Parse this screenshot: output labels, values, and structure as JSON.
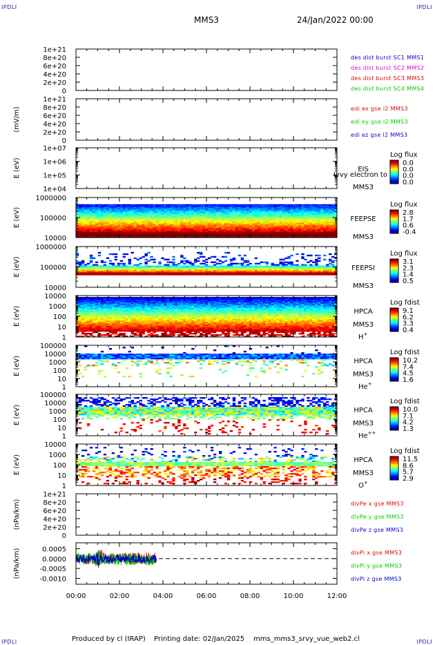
{
  "corners": {
    "tl": "IPDLI",
    "tr": "IPDLI",
    "bl": "IPDLI",
    "br": "IPDLI"
  },
  "header": {
    "spacecraft": "MMS3",
    "date": "24/Jan/2022 00:00"
  },
  "footer": {
    "produced": "Produced by cl (IRAP)",
    "printing": "Printing date: 02/Jan/2025",
    "file": "mms_mms3_srvy_vue_web2.cl"
  },
  "colors": {
    "black": "#000000",
    "blue": "#0000cc",
    "green": "#00cc00",
    "red": "#dd0000",
    "magenta": "#dd00dd"
  },
  "chart_data": {
    "type": "multi-panel time series (line + spectrogram)",
    "time_axis": {
      "range": [
        "00:00",
        "12:00"
      ],
      "ticks": [
        "00:00",
        "02:00",
        "04:00",
        "06:00",
        "08:00",
        "10:00",
        "12:00"
      ]
    },
    "panels": [
      {
        "id": "p1",
        "kind": "line",
        "ylabel": "",
        "yticks": [
          "1e+21",
          "8e+20",
          "6e+20",
          "4e+20",
          "2e+20",
          "0"
        ],
        "ylim": [
          0,
          1e+21
        ],
        "zero_line": true,
        "legend": [
          {
            "label": "des dist burst SC1 MMS1",
            "color": "#0000cc"
          },
          {
            "label": "des dist burst SC2 MMS2",
            "color": "#dd00dd"
          },
          {
            "label": "des dist burst SC3 MMS3",
            "color": "#dd0000"
          },
          {
            "label": "des dist burst SC4 MMS4",
            "color": "#00cc00"
          }
        ],
        "series": []
      },
      {
        "id": "p2",
        "kind": "line",
        "ylabel": "(mV/m)",
        "yticks": [
          "1e+21",
          "8e+20",
          "6e+20",
          "4e+20",
          "2e+20",
          "0"
        ],
        "ylim": [
          0,
          1e+21
        ],
        "zero_line": true,
        "legend": [
          {
            "label": "edi ex gse l2 MMS3",
            "color": "#dd0000"
          },
          {
            "label": "edi ey gse l2 MMS3",
            "color": "#00cc00"
          },
          {
            "label": "edi ez gse l2 MMS3",
            "color": "#0000cc"
          }
        ],
        "series": []
      },
      {
        "id": "p3",
        "kind": "spectrogram",
        "ylabel": "E (eV)",
        "yticks": [
          "1e+07",
          "1e+06",
          "1e+05",
          "1e+04"
        ],
        "label": [
          "EIS",
          "MMS3"
        ],
        "overlay": "Ivvy electron to",
        "colorbar": {
          "title": "Log flux",
          "ticks": [
            "0.0",
            "0.0",
            "0.0",
            "0.0"
          ]
        },
        "empty": true
      },
      {
        "id": "p4",
        "kind": "spectrogram",
        "ylabel": "E (eV)",
        "yticks": [
          "1000000",
          "100000",
          "10000"
        ],
        "label": [
          "FEEPSE",
          "MMS3"
        ],
        "colorbar": {
          "title": "Log flux",
          "ticks": [
            "2.8",
            "1.7",
            "0.6",
            "-0.4"
          ]
        },
        "pattern": "feepse"
      },
      {
        "id": "p5",
        "kind": "spectrogram",
        "ylabel": "E (eV)",
        "yticks": [
          "1000000",
          "100000",
          "10000"
        ],
        "label": [
          "FEEPSI",
          "MMS3"
        ],
        "colorbar": {
          "title": "Log flux",
          "ticks": [
            "3.1",
            "2.3",
            "1.4",
            "0.5"
          ]
        },
        "pattern": "feepsi"
      },
      {
        "id": "p6",
        "kind": "spectrogram",
        "ylabel": "E (eV)",
        "yticks": [
          "10000",
          "1000",
          "100",
          "10",
          "1"
        ],
        "label": [
          "HPCA",
          "MMS3"
        ],
        "species": "H",
        "charge": "+",
        "colorbar": {
          "title": "Log fdist",
          "ticks": [
            "9.1",
            "6.2",
            "3.3",
            "0.4"
          ]
        },
        "pattern": "hpca_h"
      },
      {
        "id": "p7",
        "kind": "spectrogram",
        "ylabel": "E (eV)",
        "yticks": [
          "100000",
          "10000",
          "1000",
          "100",
          "10",
          "1"
        ],
        "label": [
          "HPCA",
          "MMS3"
        ],
        "species": "He",
        "charge": "+",
        "colorbar": {
          "title": "Log fdist",
          "ticks": [
            "10.2",
            "7.4",
            "4.5",
            "1.6"
          ]
        },
        "pattern": "hpca_he1"
      },
      {
        "id": "p8",
        "kind": "spectrogram",
        "ylabel": "E (eV)",
        "yticks": [
          "100000",
          "10000",
          "1000",
          "100",
          "10",
          "1"
        ],
        "label": [
          "HPCA",
          "MMS3"
        ],
        "species": "He",
        "charge": "++",
        "colorbar": {
          "title": "Log fdist",
          "ticks": [
            "10.0",
            "7.1",
            "4.2",
            "1.3"
          ]
        },
        "pattern": "hpca_he2"
      },
      {
        "id": "p9",
        "kind": "spectrogram",
        "ylabel": "E (eV)",
        "yticks": [
          "10000",
          "1000",
          "100",
          "10",
          "1"
        ],
        "label": [
          "HPCA",
          "MMS3"
        ],
        "species": "O",
        "charge": "+",
        "colorbar": {
          "title": "Log fdist",
          "ticks": [
            "11.5",
            "8.6",
            "5.7",
            "2.9"
          ]
        },
        "pattern": "hpca_o"
      },
      {
        "id": "p10",
        "kind": "line",
        "ylabel": "(nPa/km)",
        "yticks": [
          "1e+21",
          "8e+20",
          "6e+20",
          "4e+20",
          "2e+20",
          "0"
        ],
        "ylim": [
          0,
          1e+21
        ],
        "zero_line": true,
        "legend": [
          {
            "label": "divPe x gse MMS3",
            "color": "#dd0000"
          },
          {
            "label": "divPe y gse MMS3",
            "color": "#00cc00"
          },
          {
            "label": "divPe z gse MMS3",
            "color": "#0000cc"
          }
        ],
        "series": []
      },
      {
        "id": "p11",
        "kind": "line",
        "ylabel": "(nPa/km)",
        "yticks": [
          "0.0005",
          "0.0000",
          "-0.0005",
          "-0.0010"
        ],
        "ylim": [
          -0.0013,
          0.0008
        ],
        "zero_line": true,
        "legend": [
          {
            "label": "divPi x gse MMS3",
            "color": "#dd0000"
          },
          {
            "label": "divPi y gse MMS3",
            "color": "#00cc00"
          },
          {
            "label": "divPi z gse MMS3",
            "color": "#0000cc"
          }
        ],
        "series": [
          {
            "name": "divPi x gse MMS3",
            "color": "#dd0000",
            "t_range": [
              0,
              3.7
            ],
            "mean": 0.0,
            "amplitude": 0.0003
          },
          {
            "name": "divPi y gse MMS3",
            "color": "#00cc00",
            "t_range": [
              0,
              3.7
            ],
            "mean": -3e-05,
            "amplitude": 0.0003
          },
          {
            "name": "divPi z gse MMS3",
            "color": "#0000cc",
            "t_range": [
              0,
              3.7
            ],
            "mean": -2e-05,
            "amplitude": 0.00022
          }
        ]
      }
    ]
  }
}
